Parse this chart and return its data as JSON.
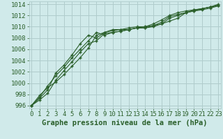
{
  "title": "Graphe pression niveau de la mer (hPa)",
  "xlim": [
    0,
    23
  ],
  "ylim": [
    995.5,
    1014.5
  ],
  "yticks": [
    996,
    998,
    1000,
    1002,
    1004,
    1006,
    1008,
    1010,
    1012,
    1014
  ],
  "xticks": [
    0,
    1,
    2,
    3,
    4,
    5,
    6,
    7,
    8,
    9,
    10,
    11,
    12,
    13,
    14,
    15,
    16,
    17,
    18,
    19,
    20,
    21,
    22,
    23
  ],
  "bg_color": "#d0eaea",
  "grid_color": "#b0cccc",
  "line_color": "#2a5f2a",
  "series1": [
    996.0,
    997.3,
    998.8,
    1001.8,
    1003.2,
    1005.0,
    1007.0,
    1008.5,
    1008.0,
    1009.0,
    1009.3,
    1009.5,
    1009.5,
    1009.8,
    1010.0,
    1010.2,
    1010.5,
    1011.0,
    1011.5,
    1012.5,
    1012.8,
    1013.2,
    1013.5,
    1013.8
  ],
  "series2": [
    996.0,
    997.5,
    999.5,
    1001.3,
    1002.8,
    1004.5,
    1006.0,
    1007.5,
    1009.0,
    1008.5,
    1009.0,
    1009.2,
    1009.5,
    1009.8,
    1009.8,
    1010.0,
    1010.5,
    1011.5,
    1012.0,
    1012.5,
    1013.0,
    1013.2,
    1013.5,
    1013.8
  ],
  "series3": [
    996.0,
    997.0,
    998.2,
    1000.5,
    1002.2,
    1003.8,
    1005.5,
    1007.0,
    1007.5,
    1008.8,
    1009.0,
    1009.2,
    1009.5,
    1009.8,
    1009.8,
    1010.2,
    1010.8,
    1011.8,
    1012.2,
    1012.5,
    1012.8,
    1013.0,
    1013.3,
    1013.7
  ],
  "series4": [
    996.0,
    997.8,
    999.2,
    1000.2,
    1001.5,
    1003.0,
    1004.5,
    1006.2,
    1008.5,
    1009.0,
    1009.5,
    1009.5,
    1009.8,
    1010.0,
    1010.0,
    1010.5,
    1011.2,
    1012.0,
    1012.5,
    1012.8,
    1013.0,
    1013.2,
    1013.5,
    1014.0
  ],
  "title_fontsize": 7.5,
  "tick_fontsize": 6.5
}
